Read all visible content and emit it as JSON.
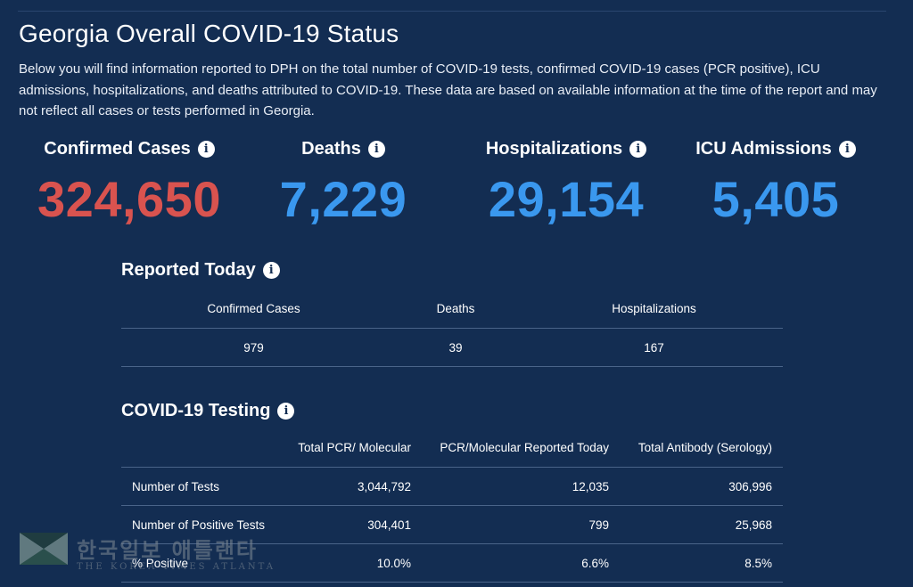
{
  "colors": {
    "background": "#132d52",
    "cases": "#d9534f",
    "stat_blue": "#3a98ef"
  },
  "page": {
    "title": "Georgia Overall COVID-19 Status",
    "intro": "Below you will find information reported to DPH on the total number of COVID-19 tests, confirmed COVID-19 cases (PCR positive), ICU admissions, hospitalizations, and deaths attributed to COVID-19. These data are based on available information at the time of the report and may not reflect all cases or tests performed in Georgia."
  },
  "stats": {
    "cases": {
      "label": "Confirmed Cases",
      "value": "324,650"
    },
    "deaths": {
      "label": "Deaths",
      "value": "7,229"
    },
    "hospitalizations": {
      "label": "Hospitalizations",
      "value": "29,154"
    },
    "icu": {
      "label": "ICU Admissions",
      "value": "5,405"
    }
  },
  "info_icon": "i",
  "reported_today": {
    "title": "Reported Today",
    "headers": [
      "Confirmed Cases",
      "Deaths",
      "Hospitalizations"
    ],
    "values": [
      "979",
      "39",
      "167"
    ]
  },
  "testing": {
    "title": "COVID-19 Testing",
    "headers": [
      "",
      "Total PCR/ Molecular",
      "PCR/Molecular Reported Today",
      "Total Antibody (Serology)"
    ],
    "rows": [
      [
        "Number of Tests",
        "3,044,792",
        "12,035",
        "306,996"
      ],
      [
        "Number of Positive Tests",
        "304,401",
        "799",
        "25,968"
      ],
      [
        "% Positive",
        "10.0%",
        "6.6%",
        "8.5%"
      ]
    ]
  },
  "watermark": {
    "korean": "한국일보 애틀랜타",
    "english": "THE KOREA TIMES ATLANTA"
  }
}
